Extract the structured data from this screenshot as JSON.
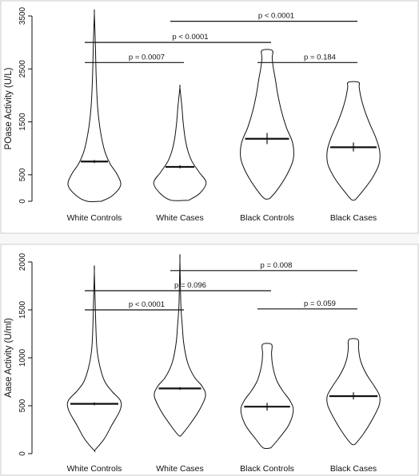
{
  "chart_data": [
    {
      "type": "violin",
      "ylabel": "POase Activity (U/L)",
      "ylim": [
        0,
        3500
      ],
      "yticks": [
        0,
        500,
        1500,
        2500,
        3500
      ],
      "categories": [
        "White Controls",
        "White Cases",
        "Black Controls",
        "Black Cases"
      ],
      "violins": [
        {
          "min": 0,
          "max": 3550,
          "median": 750,
          "ci": [
            720,
            780
          ],
          "density": [
            [
              0,
              0.22
            ],
            [
              100,
              0.55
            ],
            [
              300,
              0.82
            ],
            [
              500,
              0.72
            ],
            [
              700,
              0.5
            ],
            [
              900,
              0.35
            ],
            [
              1100,
              0.26
            ],
            [
              1400,
              0.17
            ],
            [
              1800,
              0.1
            ],
            [
              2300,
              0.06
            ],
            [
              3000,
              0.03
            ],
            [
              3550,
              0.0
            ]
          ]
        },
        {
          "min": 20,
          "max": 2150,
          "median": 650,
          "ci": [
            620,
            680
          ],
          "density": [
            [
              20,
              0.28
            ],
            [
              150,
              0.62
            ],
            [
              350,
              0.82
            ],
            [
              550,
              0.6
            ],
            [
              750,
              0.38
            ],
            [
              950,
              0.25
            ],
            [
              1200,
              0.16
            ],
            [
              1500,
              0.1
            ],
            [
              1800,
              0.06
            ],
            [
              2150,
              0.0
            ]
          ]
        },
        {
          "min": 50,
          "max": 2850,
          "median": 1180,
          "ci": [
            1080,
            1290
          ],
          "density": [
            [
              50,
              0.08
            ],
            [
              200,
              0.3
            ],
            [
              500,
              0.62
            ],
            [
              800,
              0.82
            ],
            [
              1100,
              0.8
            ],
            [
              1400,
              0.6
            ],
            [
              1700,
              0.45
            ],
            [
              2000,
              0.34
            ],
            [
              2300,
              0.26
            ],
            [
              2500,
              0.2
            ],
            [
              2700,
              0.16
            ],
            [
              2850,
              0.16
            ]
          ]
        },
        {
          "min": 30,
          "max": 2250,
          "median": 1020,
          "ci": [
            940,
            1110
          ],
          "density": [
            [
              30,
              0.06
            ],
            [
              200,
              0.3
            ],
            [
              450,
              0.6
            ],
            [
              700,
              0.8
            ],
            [
              950,
              0.82
            ],
            [
              1200,
              0.7
            ],
            [
              1450,
              0.52
            ],
            [
              1700,
              0.36
            ],
            [
              1950,
              0.24
            ],
            [
              2150,
              0.18
            ],
            [
              2250,
              0.16
            ]
          ]
        }
      ],
      "comparisons": [
        {
          "from": 0,
          "to": 1,
          "y": 2620,
          "label": "p = 0.0007"
        },
        {
          "from": 0,
          "to": 2,
          "y": 3000,
          "label": "p < 0.0001"
        },
        {
          "from": 1,
          "to": 3,
          "y": 3400,
          "label": "p < 0.0001"
        },
        {
          "from": 2,
          "to": 3,
          "y": 2620,
          "label": "p = 0.184"
        }
      ]
    },
    {
      "type": "violin",
      "ylabel": "Aase Activity (U/ml)",
      "ylim": [
        0,
        2000
      ],
      "yticks": [
        0,
        500,
        1000,
        1500,
        2000
      ],
      "categories": [
        "White Controls",
        "White Cases",
        "Black Controls",
        "Black Cases"
      ],
      "violins": [
        {
          "min": 30,
          "max": 1900,
          "median": 520,
          "ci": [
            505,
            535
          ],
          "density": [
            [
              30,
              0.0
            ],
            [
              150,
              0.3
            ],
            [
              300,
              0.55
            ],
            [
              450,
              0.8
            ],
            [
              550,
              0.82
            ],
            [
              650,
              0.55
            ],
            [
              750,
              0.33
            ],
            [
              900,
              0.18
            ],
            [
              1100,
              0.08
            ],
            [
              1400,
              0.04
            ],
            [
              1900,
              0.0
            ]
          ]
        },
        {
          "min": 190,
          "max": 2020,
          "median": 680,
          "ci": [
            665,
            695
          ],
          "density": [
            [
              190,
              0.04
            ],
            [
              300,
              0.3
            ],
            [
              450,
              0.6
            ],
            [
              600,
              0.8
            ],
            [
              700,
              0.7
            ],
            [
              800,
              0.45
            ],
            [
              950,
              0.24
            ],
            [
              1150,
              0.12
            ],
            [
              1350,
              0.07
            ],
            [
              1550,
              0.03
            ],
            [
              2020,
              0.0
            ]
          ]
        },
        {
          "min": 60,
          "max": 1140,
          "median": 490,
          "ci": [
            450,
            530
          ],
          "density": [
            [
              60,
              0.12
            ],
            [
              150,
              0.35
            ],
            [
              300,
              0.68
            ],
            [
              450,
              0.82
            ],
            [
              550,
              0.72
            ],
            [
              650,
              0.5
            ],
            [
              750,
              0.32
            ],
            [
              850,
              0.22
            ],
            [
              950,
              0.16
            ],
            [
              1050,
              0.14
            ],
            [
              1140,
              0.14
            ]
          ]
        },
        {
          "min": 100,
          "max": 1190,
          "median": 600,
          "ci": [
            565,
            640
          ],
          "density": [
            [
              100,
              0.06
            ],
            [
              200,
              0.3
            ],
            [
              350,
              0.58
            ],
            [
              500,
              0.8
            ],
            [
              600,
              0.82
            ],
            [
              700,
              0.66
            ],
            [
              800,
              0.46
            ],
            [
              900,
              0.3
            ],
            [
              1000,
              0.2
            ],
            [
              1100,
              0.16
            ],
            [
              1190,
              0.14
            ]
          ]
        }
      ],
      "comparisons": [
        {
          "from": 0,
          "to": 1,
          "y": 1500,
          "label": "p < 0.0001"
        },
        {
          "from": 0,
          "to": 2,
          "y": 1700,
          "label": "p = 0.096"
        },
        {
          "from": 1,
          "to": 3,
          "y": 1910,
          "label": "p = 0.008"
        },
        {
          "from": 2,
          "to": 3,
          "y": 1510,
          "label": "p = 0.059"
        }
      ]
    }
  ]
}
